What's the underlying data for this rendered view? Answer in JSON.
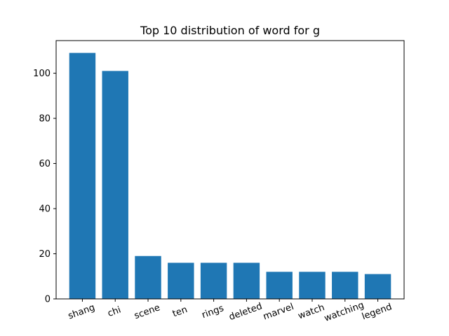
{
  "chart_data": {
    "type": "bar",
    "title": "Top 10 distribution of word for g",
    "xlabel": "",
    "ylabel": "",
    "categories": [
      "shang",
      "chi",
      "scene",
      "ten",
      "rings",
      "deleted",
      "marvel",
      "watch",
      "watching",
      "legend"
    ],
    "values": [
      109,
      101,
      19,
      16,
      16,
      16,
      12,
      12,
      12,
      11
    ],
    "ylim": [
      0,
      114.45
    ],
    "yticks": [
      0,
      20,
      40,
      60,
      80,
      100
    ],
    "bar_color": "#1f77b4",
    "grid": false,
    "x_tick_rotation": "slanted"
  }
}
